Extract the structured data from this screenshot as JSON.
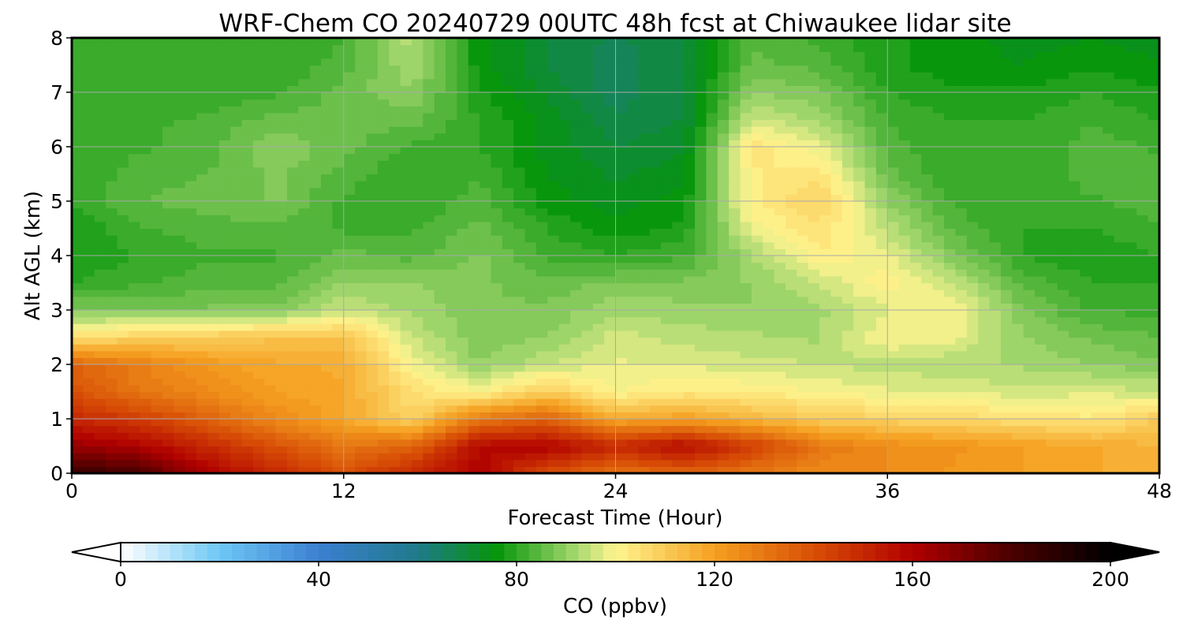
{
  "chart_data": {
    "type": "heatmap",
    "title": "WRF-Chem CO  20240729 00UTC 48h fcst at Chiwaukee lidar site",
    "xlabel": "Forecast Time (Hour)",
    "ylabel": "Alt AGL (km)",
    "xlim": [
      0,
      48
    ],
    "ylim": [
      0,
      8
    ],
    "xticks": [
      0,
      12,
      24,
      36,
      48
    ],
    "yticks": [
      0,
      1,
      2,
      3,
      4,
      5,
      6,
      7,
      8
    ],
    "grid": true,
    "x": [
      0,
      3,
      6,
      9,
      12,
      15,
      18,
      21,
      24,
      27,
      30,
      33,
      36,
      39,
      42,
      45,
      48
    ],
    "y": [
      0,
      0.5,
      1,
      1.5,
      2,
      2.5,
      3,
      3.5,
      4,
      4.5,
      5,
      5.5,
      6,
      6.5,
      7,
      7.5,
      8
    ],
    "z": [
      [
        185,
        180,
        160,
        150,
        140,
        150,
        160,
        140,
        130,
        135,
        130,
        125,
        125,
        122,
        120,
        118,
        115
      ],
      [
        165,
        160,
        150,
        140,
        130,
        135,
        158,
        160,
        150,
        158,
        145,
        130,
        125,
        123,
        120,
        118,
        115
      ],
      [
        150,
        145,
        135,
        125,
        118,
        108,
        130,
        135,
        118,
        120,
        115,
        110,
        108,
        107,
        105,
        103,
        110
      ],
      [
        140,
        130,
        125,
        120,
        118,
        105,
        100,
        110,
        100,
        103,
        102,
        100,
        98,
        97,
        96,
        97,
        95
      ],
      [
        135,
        128,
        122,
        118,
        117,
        100,
        90,
        95,
        98,
        97,
        96,
        95,
        94,
        93,
        92,
        90,
        88
      ],
      [
        105,
        108,
        110,
        112,
        112,
        95,
        88,
        90,
        96,
        94,
        93,
        92,
        100,
        98,
        90,
        87,
        85
      ],
      [
        88,
        88,
        88,
        88,
        95,
        92,
        88,
        88,
        92,
        91,
        90,
        92,
        97,
        100,
        88,
        82,
        82
      ],
      [
        80,
        82,
        84,
        84,
        90,
        90,
        88,
        86,
        88,
        88,
        90,
        95,
        102,
        95,
        84,
        80,
        80
      ],
      [
        78,
        80,
        82,
        82,
        86,
        84,
        88,
        82,
        80,
        82,
        92,
        102,
        98,
        88,
        80,
        78,
        80
      ],
      [
        78,
        82,
        84,
        84,
        82,
        82,
        86,
        80,
        76,
        78,
        98,
        105,
        94,
        84,
        80,
        80,
        82
      ],
      [
        80,
        85,
        86,
        88,
        82,
        80,
        84,
        76,
        74,
        76,
        102,
        108,
        90,
        82,
        80,
        82,
        84
      ],
      [
        80,
        84,
        85,
        88,
        84,
        80,
        82,
        75,
        72,
        74,
        102,
        104,
        86,
        80,
        80,
        84,
        84
      ],
      [
        80,
        82,
        84,
        90,
        86,
        82,
        80,
        74,
        70,
        72,
        104,
        98,
        84,
        80,
        80,
        84,
        82
      ],
      [
        80,
        82,
        83,
        86,
        86,
        86,
        80,
        74,
        68,
        70,
        96,
        92,
        82,
        80,
        80,
        82,
        80
      ],
      [
        80,
        80,
        80,
        82,
        86,
        90,
        78,
        72,
        66,
        70,
        90,
        88,
        80,
        78,
        78,
        80,
        78
      ],
      [
        80,
        80,
        80,
        80,
        84,
        92,
        76,
        70,
        66,
        70,
        86,
        84,
        78,
        76,
        75,
        77,
        75
      ],
      [
        80,
        80,
        80,
        80,
        82,
        94,
        76,
        70,
        67,
        70,
        84,
        82,
        78,
        76,
        74,
        75,
        74
      ]
    ],
    "colorbar": {
      "label": "CO  (ppbv)",
      "min": 0,
      "max": 200,
      "ticks": [
        0,
        40,
        80,
        120,
        160,
        200
      ],
      "extend": "both",
      "stops": [
        {
          "v": 0,
          "c": "#ffffff"
        },
        {
          "v": 20,
          "c": "#6ec8f5"
        },
        {
          "v": 40,
          "c": "#3b7fd0"
        },
        {
          "v": 60,
          "c": "#1f7a8a"
        },
        {
          "v": 76,
          "c": "#05950a"
        },
        {
          "v": 92,
          "c": "#a5d870"
        },
        {
          "v": 100,
          "c": "#fff590"
        },
        {
          "v": 120,
          "c": "#f5a020"
        },
        {
          "v": 140,
          "c": "#d84f06"
        },
        {
          "v": 160,
          "c": "#b00000"
        },
        {
          "v": 180,
          "c": "#4a0000"
        },
        {
          "v": 200,
          "c": "#000000"
        }
      ]
    }
  }
}
